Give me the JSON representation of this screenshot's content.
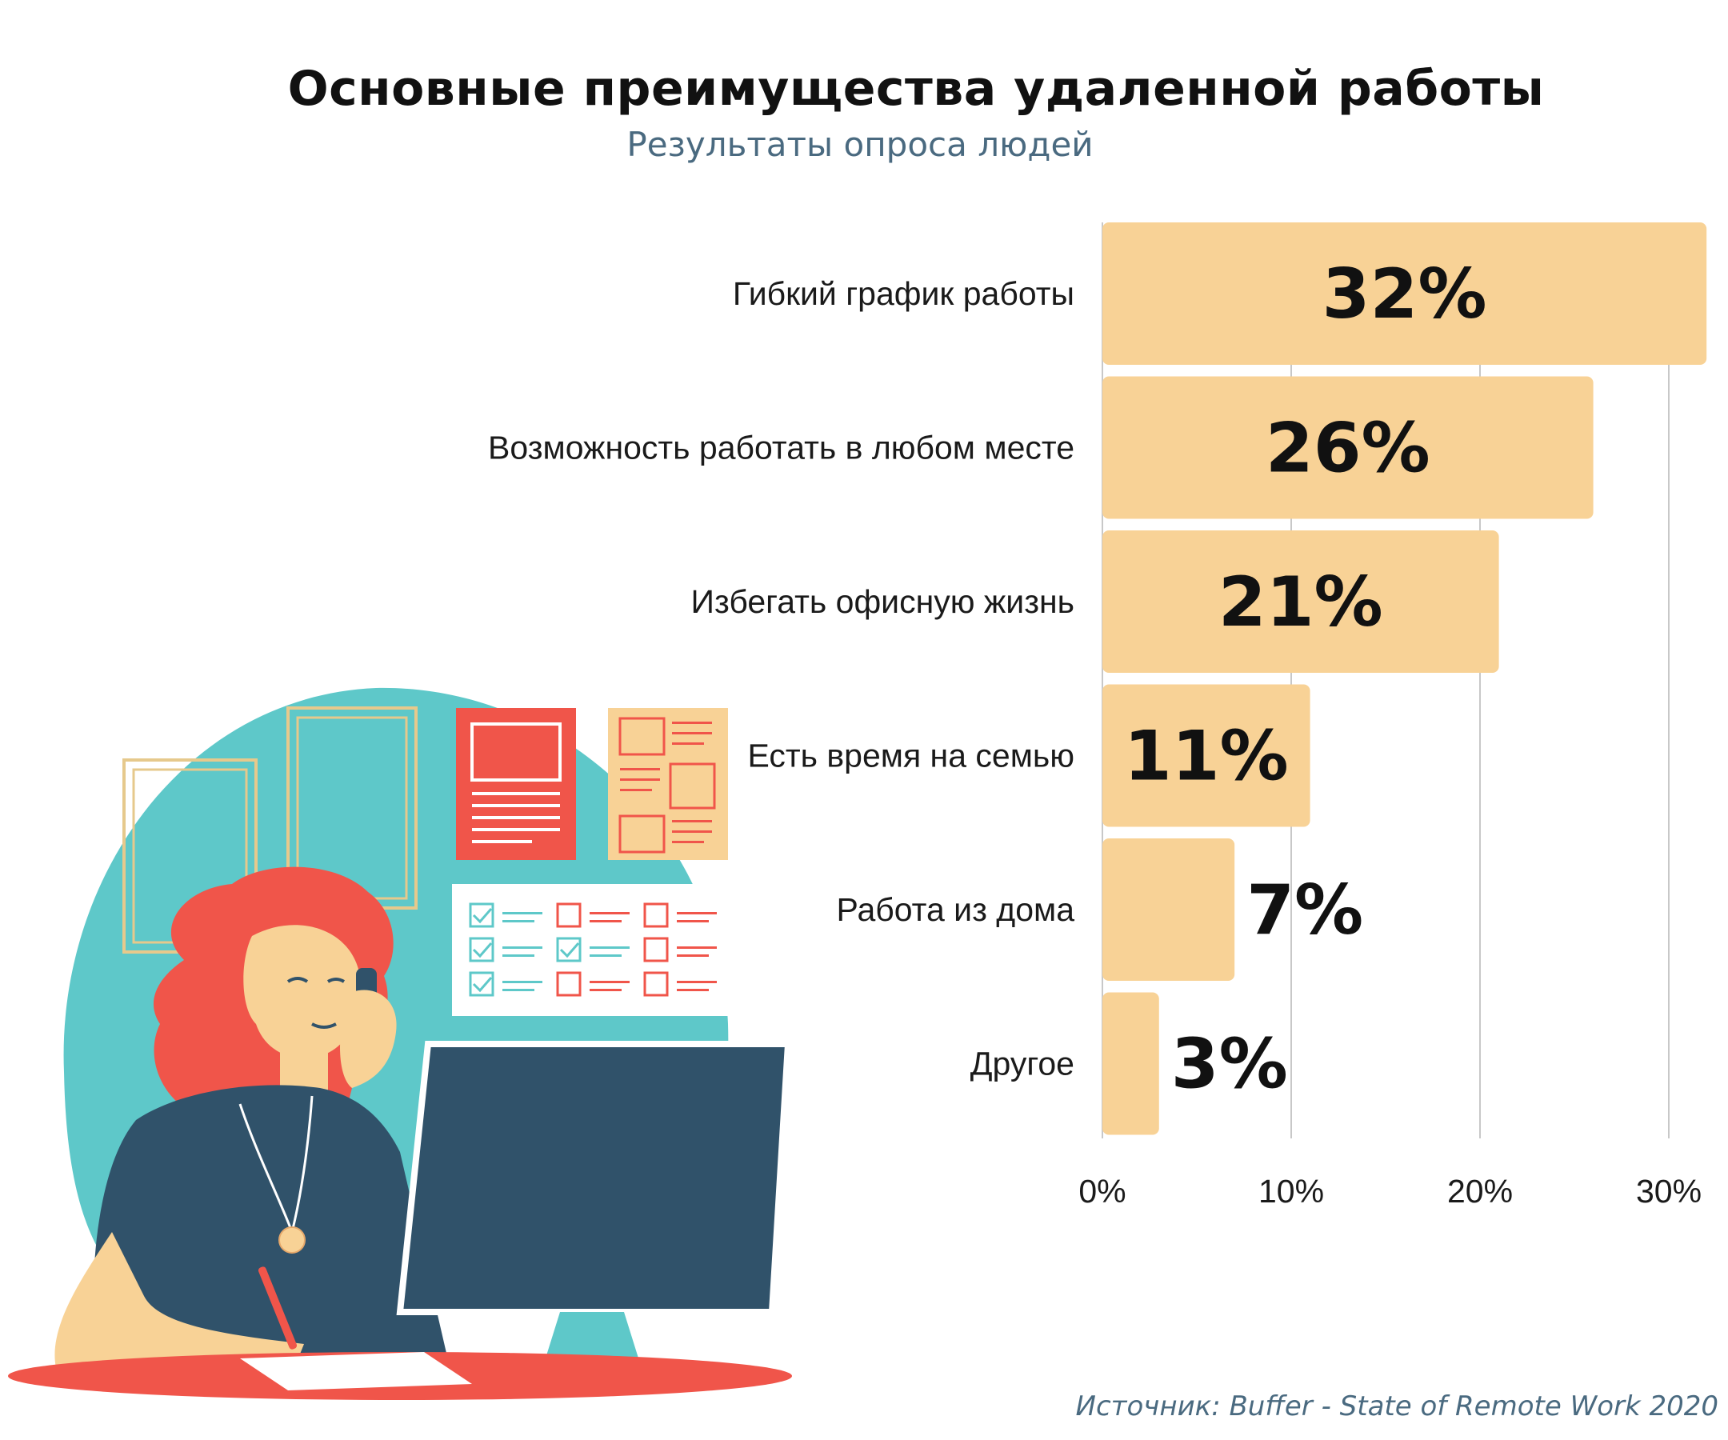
{
  "colors": {
    "bar": "#f8d296",
    "grid": "#c8c8c8",
    "teal": "#5ec8c9",
    "red": "#f0554a",
    "navy": "#30526a",
    "skin": "#f8d296"
  },
  "chart_data": {
    "type": "bar",
    "orientation": "horizontal",
    "title": "Основные преимущества удаленной работы",
    "subtitle": "Результаты опроса людей",
    "categories": [
      "Гибкий график работы",
      "Возможность работать в любом месте",
      "Избегать офисную жизнь",
      "Есть время на семью",
      "Работа из дома",
      "Другое"
    ],
    "values": [
      32,
      26,
      21,
      11,
      7,
      3
    ],
    "value_labels": [
      "32%",
      "26%",
      "21%",
      "11%",
      "7%",
      "3%"
    ],
    "xlim": [
      0,
      30
    ],
    "xticks": [
      0,
      10,
      20,
      30
    ],
    "xtick_labels": [
      "0%",
      "10%",
      "20%",
      "30%"
    ],
    "grid": true,
    "source": "Источник: Buffer - State of Remote Work 2020"
  }
}
